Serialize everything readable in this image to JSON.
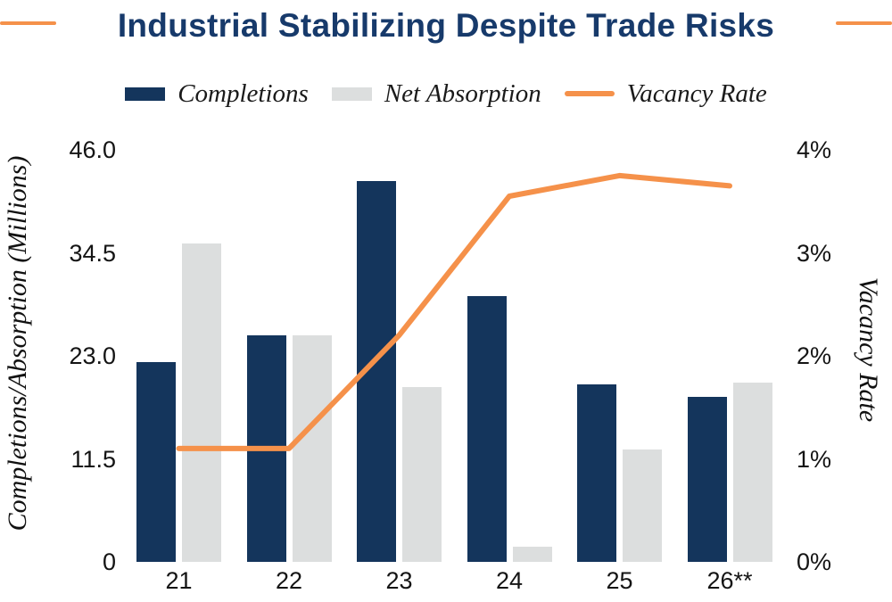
{
  "title": {
    "text": "Industrial Stabilizing Despite Trade Risks",
    "color": "#173A6B"
  },
  "decorations": {
    "rule_color": "#F5914A"
  },
  "legend": {
    "items": [
      {
        "label": "Completions",
        "swatch": "bar",
        "color": "#14355C"
      },
      {
        "label": "Net Absorption",
        "swatch": "bar",
        "color": "#DCDEDE"
      },
      {
        "label": "Vacancy Rate",
        "swatch": "line",
        "color": "#F5914A"
      }
    ]
  },
  "axes": {
    "left": {
      "title": "Completions/Absorption (Millions)",
      "ticks": [
        {
          "label": "46.0",
          "value": 46
        },
        {
          "label": "34.5",
          "value": 34.5
        },
        {
          "label": "23.0",
          "value": 23
        },
        {
          "label": "11.5",
          "value": 11.5
        },
        {
          "label": "0",
          "value": 0
        }
      ]
    },
    "right": {
      "title": "Vacancy Rate",
      "ticks": [
        {
          "label": "4%",
          "value": 4
        },
        {
          "label": "3%",
          "value": 3
        },
        {
          "label": "2%",
          "value": 2
        },
        {
          "label": "1%",
          "value": 1
        },
        {
          "label": "0%",
          "value": 0
        }
      ]
    },
    "x": {
      "labels": [
        "21",
        "22",
        "23",
        "24",
        "25",
        "26**"
      ]
    }
  },
  "chart_data": {
    "type": "bar",
    "subtype": "combo-bar-line-dual-axis",
    "title": "Industrial Stabilizing Despite Trade Risks",
    "categories": [
      "21",
      "22",
      "23",
      "24",
      "25",
      "26**"
    ],
    "series": [
      {
        "name": "Completions",
        "type": "bar",
        "axis": "left",
        "color": "#14355C",
        "values": [
          22.3,
          25.3,
          42.5,
          29.7,
          19.8,
          18.4
        ]
      },
      {
        "name": "Net Absorption",
        "type": "bar",
        "axis": "left",
        "color": "#DCDEDE",
        "values": [
          35.5,
          25.3,
          19.5,
          1.7,
          12.5,
          20.0
        ]
      },
      {
        "name": "Vacancy Rate",
        "type": "line",
        "axis": "right",
        "color": "#F5914A",
        "values": [
          1.1,
          1.1,
          2.2,
          3.55,
          3.75,
          3.65
        ]
      }
    ],
    "xlabel": "",
    "ylabel_left": "Completions/Absorption (Millions)",
    "ylabel_right": "Vacancy Rate",
    "left_ylim": [
      0,
      46
    ],
    "right_ylim": [
      0,
      4
    ],
    "right_unit": "%",
    "grid": false,
    "legend_position": "top"
  }
}
